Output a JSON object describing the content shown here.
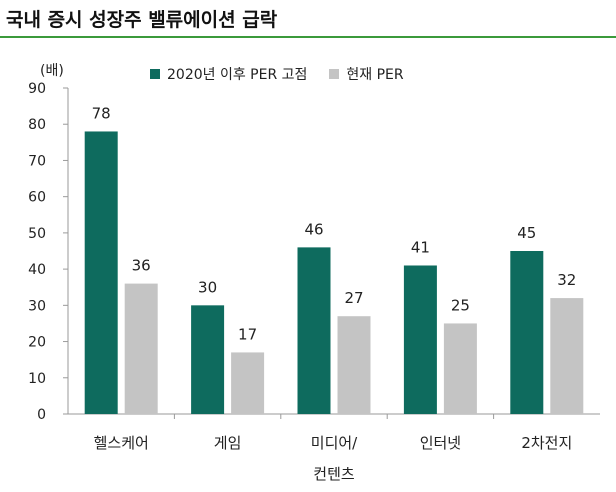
{
  "title": "국내 증시 성장주 밸류에이션 급락",
  "colors": {
    "accent_rule": "#3b9a3b",
    "series1": "#0e6b5e",
    "series2": "#c4c4c4",
    "axis": "#9a9a9a"
  },
  "chart_data": {
    "type": "bar",
    "unit_label": "(배)",
    "categories": [
      [
        "헬스케어"
      ],
      [
        "게임"
      ],
      [
        "미디어/",
        "컨텐츠"
      ],
      [
        "인터넷"
      ],
      [
        "2차전지"
      ]
    ],
    "series": [
      {
        "name": "2020년 이후 PER 고점",
        "values": [
          78,
          30,
          46,
          41,
          45
        ]
      },
      {
        "name": "현재 PER",
        "values": [
          36,
          17,
          27,
          25,
          32
        ]
      }
    ],
    "ylim": [
      0,
      90
    ],
    "yticks": [
      0,
      10,
      20,
      30,
      40,
      50,
      60,
      70,
      80,
      90
    ],
    "legend_position": "top",
    "grid": false
  }
}
